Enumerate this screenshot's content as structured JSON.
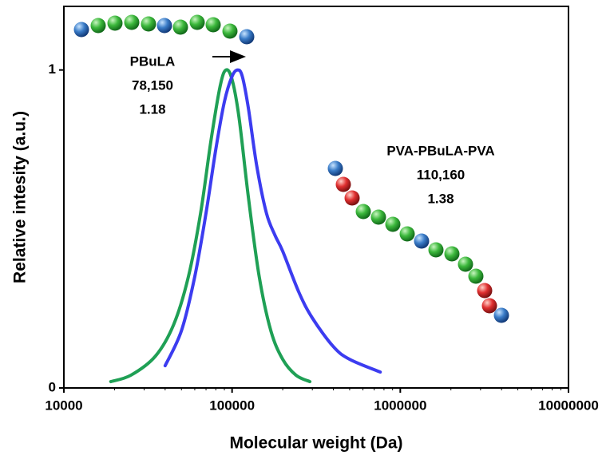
{
  "chart_data": {
    "type": "line",
    "xlabel": "Molecular weight (Da)",
    "ylabel": "Relative intesity (a.u.)",
    "log_x": true,
    "xlim": [
      10000,
      10000000
    ],
    "xticks": [
      10000,
      100000,
      1000000,
      10000000
    ],
    "ylim": [
      0,
      1.2
    ],
    "yticks": [
      0,
      1
    ],
    "series": [
      {
        "color": "#1fa055",
        "x": [
          19000,
          25000,
          35000,
          45000,
          55000,
          65000,
          75000,
          85000,
          92000,
          100000,
          110000,
          125000,
          145000,
          170000,
          200000,
          240000,
          290000
        ],
        "values": [
          0.02,
          0.04,
          0.1,
          0.2,
          0.35,
          0.55,
          0.78,
          0.95,
          1.0,
          0.97,
          0.85,
          0.6,
          0.35,
          0.18,
          0.09,
          0.04,
          0.02
        ]
      },
      {
        "color": "#3c3cf0",
        "x": [
          40000,
          50000,
          60000,
          70000,
          80000,
          90000,
          100000,
          108000,
          115000,
          125000,
          140000,
          160000,
          180000,
          200000,
          250000,
          300000,
          400000,
          500000,
          760000
        ],
        "values": [
          0.07,
          0.18,
          0.35,
          0.55,
          0.75,
          0.9,
          0.98,
          1.0,
          0.98,
          0.88,
          0.7,
          0.55,
          0.48,
          0.43,
          0.3,
          0.22,
          0.13,
          0.09,
          0.05
        ]
      }
    ],
    "annotations": [
      [
        "PBuLA",
        "78,150",
        "1.18"
      ],
      [
        "PVA-PBuLA-PVA",
        "110,160",
        "1.38"
      ]
    ]
  }
}
